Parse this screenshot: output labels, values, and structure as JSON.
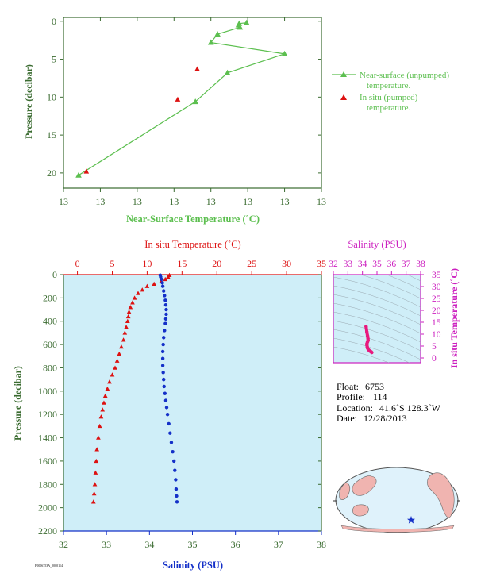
{
  "colors": {
    "green": "#5cbf4f",
    "red": "#dd1111",
    "blue": "#1430c8",
    "magenta": "#cc1fbf",
    "axis_green": "#3a6b30",
    "panel_bg": "#cfeef8",
    "land": "#f0b4b0",
    "ocean": "#dff2fb"
  },
  "top_chart": {
    "xlabel": "Near-Surface Temperature (˚C)",
    "ylabel": "Pressure (decibar)",
    "x_tick_labels": [
      "13",
      "13",
      "13",
      "13",
      "13",
      "13",
      "13",
      "13"
    ],
    "legend": {
      "series1_line1": "Near-surface (unpumped)",
      "series1_line2": "temperature.",
      "series2_line1": "In situ (pumped)",
      "series2_line2": "temperature."
    }
  },
  "bottom_chart": {
    "top_xlabel": "In situ Temperature (˚C)",
    "bottom_xlabel": "Salinity (PSU)",
    "ylabel": "Pressure (decibar)"
  },
  "inset": {
    "top_label": "Salinity (PSU)",
    "right_label": "In situ Temperature (˚C)"
  },
  "float_info": {
    "float_label": "Float:",
    "float_value": "6753",
    "profile_label": "Profile:",
    "profile_value": "114",
    "location_label": "Location:",
    "location_value": "41.6˚S  128.3˚W",
    "date_label": "Date:",
    "date_value": "12/28/2013"
  },
  "map": {
    "marker": "float-position-star"
  },
  "footer_code": "F0006753A_0000114",
  "chart_data": [
    {
      "type": "line",
      "name": "near-surface-temperature-profile",
      "xlabel": "Near-Surface Temperature (˚C)",
      "ylabel": "Pressure (decibar)",
      "x_ticks": [
        12.98,
        12.99,
        13.0,
        13.01,
        13.02,
        13.03,
        13.04,
        13.05
      ],
      "xlim": [
        12.98,
        13.05
      ],
      "y_ticks": [
        0,
        5,
        10,
        15,
        20
      ],
      "ylim": [
        22,
        -0.5
      ],
      "y_inverted": true,
      "series": [
        {
          "name": "Near-surface (unpumped) temperature.",
          "color": "#5cbf4f",
          "marker": "triangle",
          "points": [
            {
              "x": 13.0297,
              "y": 0.2
            },
            {
              "x": 13.0277,
              "y": 0.3
            },
            {
              "x": 13.0275,
              "y": 0.5
            },
            {
              "x": 13.0279,
              "y": 0.8
            },
            {
              "x": 13.0218,
              "y": 1.7
            },
            {
              "x": 13.02,
              "y": 2.8
            },
            {
              "x": 13.04,
              "y": 4.3
            },
            {
              "x": 13.0245,
              "y": 6.8
            },
            {
              "x": 13.0158,
              "y": 10.6
            },
            {
              "x": 12.9841,
              "y": 20.3
            }
          ]
        },
        {
          "name": "In situ (pumped) temperature.",
          "color": "#dd1111",
          "marker": "triangle",
          "points": [
            {
              "x": 13.0163,
              "y": 6.3
            },
            {
              "x": 13.011,
              "y": 10.3
            },
            {
              "x": 12.9862,
              "y": 19.8
            }
          ]
        }
      ]
    },
    {
      "type": "scatter",
      "name": "temperature-salinity-depth-profile",
      "xlabel_top": "In situ Temperature (˚C)",
      "xlabel_bottom": "Salinity (PSU)",
      "ylabel": "Pressure (decibar)",
      "temperature_ticks": [
        0,
        5,
        10,
        15,
        20,
        25,
        30,
        35
      ],
      "temperature_lim": [
        -2,
        35
      ],
      "salinity_ticks": [
        32,
        33,
        34,
        35,
        36,
        37,
        38
      ],
      "salinity_lim": [
        32,
        38
      ],
      "pressure_ticks": [
        0,
        200,
        400,
        600,
        800,
        1000,
        1200,
        1400,
        1600,
        1800,
        2000,
        2200
      ],
      "pressure_lim": [
        2200,
        0
      ],
      "pressure_inverted": true,
      "series": [
        {
          "name": "In situ Temperature",
          "color": "#dd1111",
          "marker": "triangle",
          "points": [
            {
              "t": 13.2,
              "p": 5
            },
            {
              "t": 13.0,
              "p": 20
            },
            {
              "t": 12.6,
              "p": 40
            },
            {
              "t": 12.0,
              "p": 60
            },
            {
              "t": 11.0,
              "p": 80
            },
            {
              "t": 10.0,
              "p": 100
            },
            {
              "t": 9.3,
              "p": 130
            },
            {
              "t": 8.7,
              "p": 160
            },
            {
              "t": 8.2,
              "p": 200
            },
            {
              "t": 7.9,
              "p": 240
            },
            {
              "t": 7.6,
              "p": 280
            },
            {
              "t": 7.4,
              "p": 320
            },
            {
              "t": 7.3,
              "p": 360
            },
            {
              "t": 7.2,
              "p": 400
            },
            {
              "t": 7.0,
              "p": 450
            },
            {
              "t": 6.8,
              "p": 500
            },
            {
              "t": 6.6,
              "p": 560
            },
            {
              "t": 6.3,
              "p": 620
            },
            {
              "t": 6.0,
              "p": 680
            },
            {
              "t": 5.7,
              "p": 740
            },
            {
              "t": 5.4,
              "p": 800
            },
            {
              "t": 5.0,
              "p": 860
            },
            {
              "t": 4.6,
              "p": 920
            },
            {
              "t": 4.3,
              "p": 980
            },
            {
              "t": 4.0,
              "p": 1040
            },
            {
              "t": 3.8,
              "p": 1100
            },
            {
              "t": 3.6,
              "p": 1160
            },
            {
              "t": 3.4,
              "p": 1220
            },
            {
              "t": 3.2,
              "p": 1300
            },
            {
              "t": 3.0,
              "p": 1400
            },
            {
              "t": 2.8,
              "p": 1500
            },
            {
              "t": 2.7,
              "p": 1600
            },
            {
              "t": 2.6,
              "p": 1700
            },
            {
              "t": 2.5,
              "p": 1800
            },
            {
              "t": 2.4,
              "p": 1880
            },
            {
              "t": 2.3,
              "p": 1950
            }
          ]
        },
        {
          "name": "Salinity",
          "color": "#1430c8",
          "marker": "circle",
          "points": [
            {
              "s": 34.25,
              "p": 5
            },
            {
              "s": 34.26,
              "p": 20
            },
            {
              "s": 34.28,
              "p": 40
            },
            {
              "s": 34.3,
              "p": 70
            },
            {
              "s": 34.31,
              "p": 100
            },
            {
              "s": 34.33,
              "p": 140
            },
            {
              "s": 34.35,
              "p": 180
            },
            {
              "s": 34.37,
              "p": 220
            },
            {
              "s": 34.38,
              "p": 260
            },
            {
              "s": 34.39,
              "p": 300
            },
            {
              "s": 34.39,
              "p": 340
            },
            {
              "s": 34.38,
              "p": 380
            },
            {
              "s": 34.37,
              "p": 420
            },
            {
              "s": 34.35,
              "p": 480
            },
            {
              "s": 34.33,
              "p": 540
            },
            {
              "s": 34.32,
              "p": 600
            },
            {
              "s": 34.31,
              "p": 660
            },
            {
              "s": 34.31,
              "p": 720
            },
            {
              "s": 34.31,
              "p": 780
            },
            {
              "s": 34.32,
              "p": 840
            },
            {
              "s": 34.33,
              "p": 900
            },
            {
              "s": 34.34,
              "p": 960
            },
            {
              "s": 34.36,
              "p": 1020
            },
            {
              "s": 34.38,
              "p": 1080
            },
            {
              "s": 34.4,
              "p": 1140
            },
            {
              "s": 34.42,
              "p": 1200
            },
            {
              "s": 34.45,
              "p": 1280
            },
            {
              "s": 34.48,
              "p": 1360
            },
            {
              "s": 34.51,
              "p": 1440
            },
            {
              "s": 34.54,
              "p": 1520
            },
            {
              "s": 34.57,
              "p": 1600
            },
            {
              "s": 34.59,
              "p": 1680
            },
            {
              "s": 34.61,
              "p": 1760
            },
            {
              "s": 34.62,
              "p": 1840
            },
            {
              "s": 34.63,
              "p": 1900
            },
            {
              "s": 34.64,
              "p": 1950
            }
          ]
        }
      ]
    },
    {
      "type": "scatter",
      "name": "temperature-salinity-diagram",
      "xlabel": "Salinity (PSU)",
      "ylabel": "In situ Temperature (˚C)",
      "x_ticks": [
        32,
        33,
        34,
        35,
        36,
        37,
        38
      ],
      "xlim": [
        32,
        38
      ],
      "y_ticks": [
        0,
        5,
        10,
        15,
        20,
        25,
        30,
        35
      ],
      "ylim": [
        -2,
        35
      ],
      "series": [
        {
          "name": "T-S curve",
          "color": "#e8197e",
          "points": [
            {
              "s": 34.25,
              "t": 13.2
            },
            {
              "s": 34.3,
              "t": 11.0
            },
            {
              "s": 34.35,
              "t": 9.3
            },
            {
              "s": 34.38,
              "t": 8.2
            },
            {
              "s": 34.39,
              "t": 7.4
            },
            {
              "s": 34.35,
              "t": 6.8
            },
            {
              "s": 34.31,
              "t": 6.0
            },
            {
              "s": 34.31,
              "t": 5.4
            },
            {
              "s": 34.33,
              "t": 4.6
            },
            {
              "s": 34.36,
              "t": 4.0
            },
            {
              "s": 34.42,
              "t": 3.4
            },
            {
              "s": 34.51,
              "t": 2.9
            },
            {
              "s": 34.59,
              "t": 2.6
            },
            {
              "s": 34.64,
              "t": 2.3
            }
          ]
        }
      ]
    }
  ]
}
